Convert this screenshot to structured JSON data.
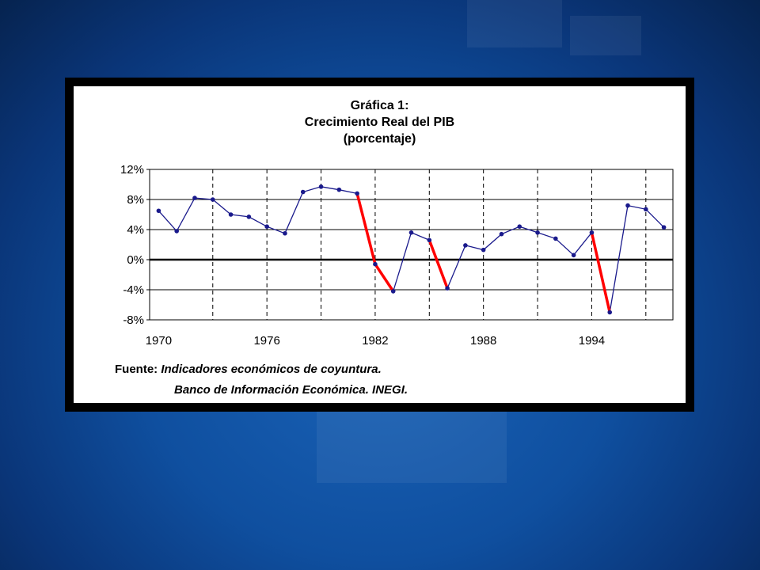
{
  "page": {
    "background_color": "#0f4f9f",
    "frame_color": "#000000"
  },
  "chart_data": {
    "type": "line",
    "title_lines": [
      "Gráfica 1:",
      "Crecimiento Real del PIB",
      "(porcentaje)"
    ],
    "xlabel": "",
    "ylabel": "",
    "x_tick_labels": [
      "1970",
      "1976",
      "1982",
      "1988",
      "1994"
    ],
    "y_tick_labels": [
      "12%",
      "8%",
      "4%",
      "0%",
      "-4%",
      "-8%"
    ],
    "ylim": [
      -8,
      12
    ],
    "y_ticks": [
      12,
      8,
      4,
      0,
      -4,
      -8
    ],
    "x_ticks": [
      1970,
      1976,
      1982,
      1988,
      1994
    ],
    "xlim": [
      1969.5,
      1998.5
    ],
    "grid": {
      "horizontal": "solid",
      "vertical": "dashed"
    },
    "series": [
      {
        "line_color": "#1a1a8c",
        "decline_color": "#ff0000",
        "x": [
          1970,
          1971,
          1972,
          1973,
          1974,
          1975,
          1976,
          1977,
          1978,
          1979,
          1980,
          1981,
          1982,
          1983,
          1984,
          1985,
          1986,
          1987,
          1988,
          1989,
          1990,
          1991,
          1992,
          1993,
          1994,
          1995,
          1996,
          1997,
          1998
        ],
        "values": [
          6.5,
          3.8,
          8.2,
          8.0,
          6.0,
          5.7,
          4.4,
          3.5,
          9.0,
          9.7,
          9.3,
          8.8,
          -0.6,
          -4.2,
          3.6,
          2.6,
          -3.8,
          1.9,
          1.3,
          3.4,
          4.4,
          3.6,
          2.8,
          0.6,
          3.6,
          -7.0,
          7.2,
          6.7,
          4.3
        ],
        "red_segments": [
          [
            1981,
            1983
          ],
          [
            1985,
            1986
          ],
          [
            1994,
            1995
          ]
        ]
      }
    ]
  },
  "source": {
    "label": "Fuente:",
    "line1": "Indicadores económicos de coyuntura.",
    "line2": "Banco de Información Económica. INEGI."
  }
}
